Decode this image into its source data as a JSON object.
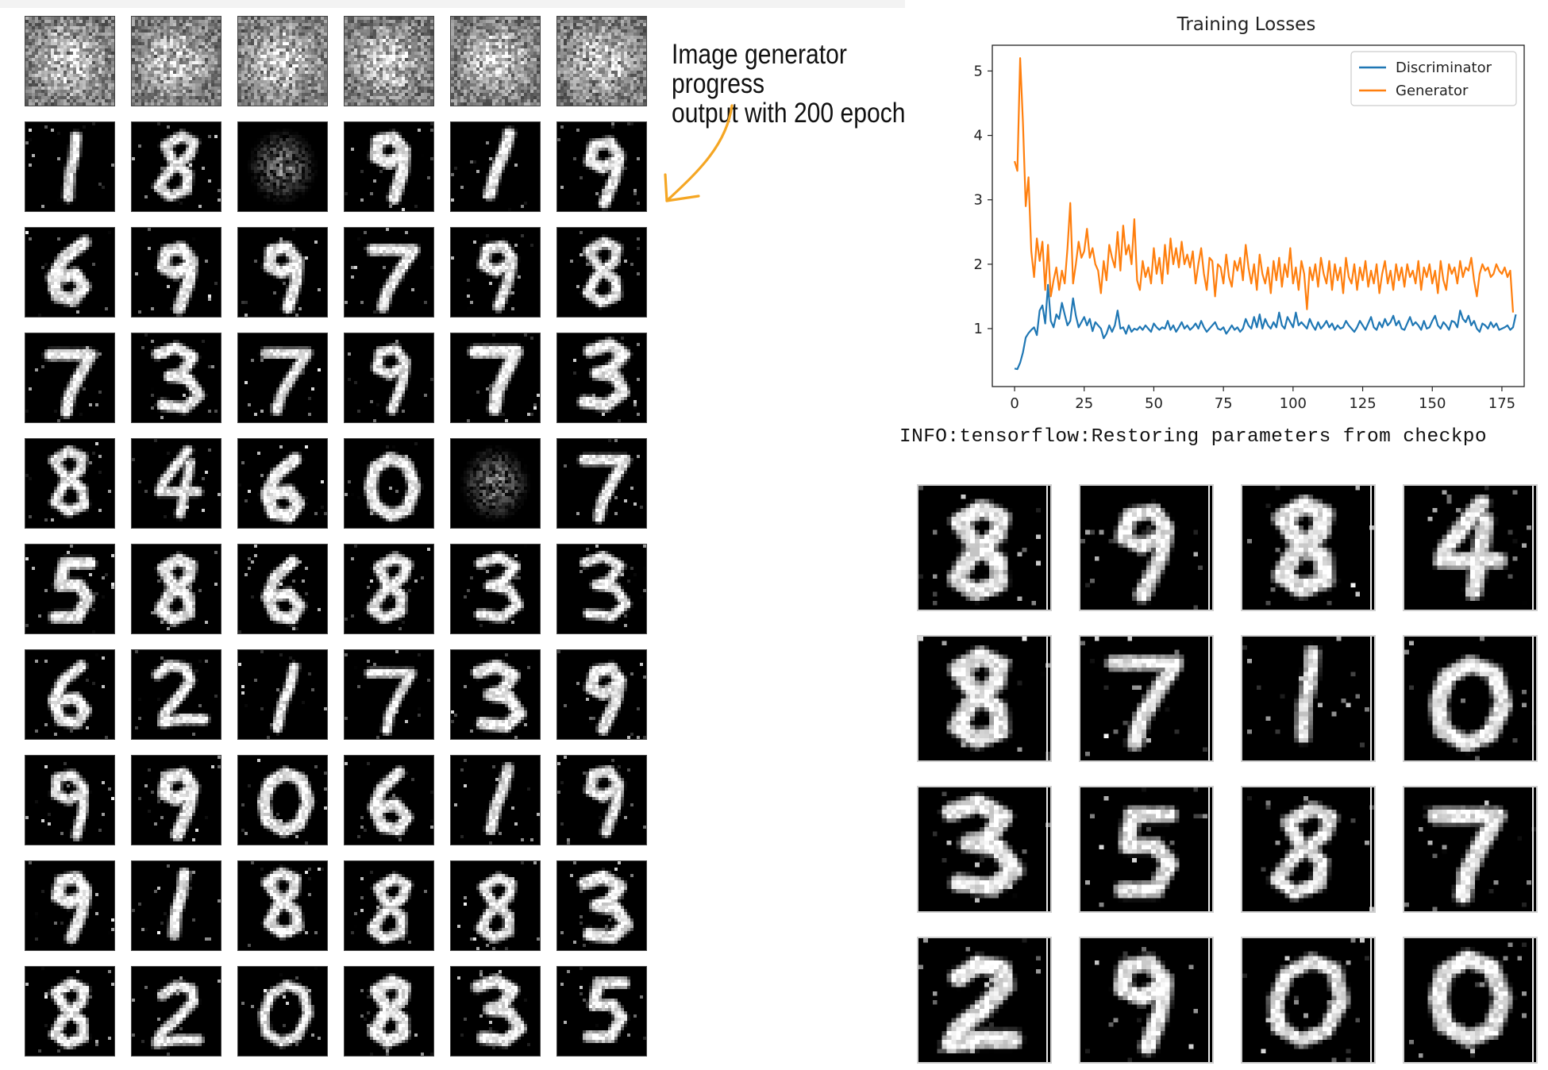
{
  "annotation": {
    "line1": "Image generator progress",
    "line2": "output with 200 epoch",
    "color": "#f5a623"
  },
  "console": {
    "text": "INFO:tensorflow:Restoring parameters from checkpo"
  },
  "left_grid": {
    "rows": [
      [
        "noise",
        "noise",
        "noise",
        "noise",
        "noise",
        "noise"
      ],
      [
        "1",
        "8",
        "noise-dark",
        "9",
        "1",
        "9"
      ],
      [
        "6",
        "9",
        "9",
        "7",
        "9",
        "8"
      ],
      [
        "7",
        "3",
        "7",
        "9",
        "7",
        "3"
      ],
      [
        "8",
        "4",
        "6",
        "0",
        "noise-dark",
        "7"
      ],
      [
        "5",
        "8",
        "6",
        "8",
        "3",
        "3"
      ],
      [
        "6",
        "2",
        "1",
        "7",
        "3",
        "9"
      ],
      [
        "9",
        "9",
        "0",
        "6",
        "1",
        "9"
      ],
      [
        "9",
        "1",
        "8",
        "8",
        "8",
        "3"
      ],
      [
        "8",
        "2",
        "0",
        "8",
        "3",
        "5"
      ]
    ]
  },
  "right_grid": {
    "rows": [
      [
        "8",
        "9",
        "8",
        "4"
      ],
      [
        "8",
        "7",
        "1",
        "0"
      ],
      [
        "3",
        "5",
        "8",
        "7"
      ],
      [
        "2",
        "9",
        "0",
        "0"
      ]
    ]
  },
  "chart_data": {
    "type": "line",
    "title": "Training Losses",
    "xlabel": "",
    "ylabel": "",
    "xlim": [
      -8,
      183
    ],
    "ylim": [
      0.1,
      5.4
    ],
    "xticks": [
      0,
      25,
      50,
      75,
      100,
      125,
      150,
      175
    ],
    "yticks": [
      1,
      2,
      3,
      4,
      5
    ],
    "legend_position": "top-right",
    "series": [
      {
        "name": "Discriminator",
        "color": "#1f77b4",
        "values": [
          0.38,
          0.37,
          0.47,
          0.63,
          0.86,
          0.93,
          0.98,
          1.02,
          0.9,
          1.28,
          1.36,
          1.08,
          1.68,
          1.12,
          1.02,
          1.22,
          1.15,
          1.4,
          1.22,
          1.05,
          1.12,
          1.47,
          1.2,
          1.02,
          1.1,
          1.18,
          1.05,
          1.15,
          0.96,
          1.1,
          1.05,
          1.0,
          0.85,
          0.92,
          1.05,
          0.95,
          1.05,
          1.28,
          1.0,
          1.02,
          0.92,
          1.05,
          0.95,
          1.0,
          0.98,
          1.03,
          0.98,
          1.05,
          1.0,
          0.95,
          1.08,
          1.02,
          0.98,
          1.02,
          1.0,
          1.12,
          0.98,
          1.05,
          0.95,
          1.02,
          1.1,
          1.0,
          1.05,
          0.98,
          1.02,
          1.08,
          1.0,
          1.12,
          1.02,
          0.95,
          1.0,
          1.05,
          1.1,
          1.0,
          0.98,
          1.02,
          0.92,
          0.98,
          1.05,
          0.98,
          1.02,
          0.95,
          1.0,
          1.15,
          1.05,
          1.0,
          1.18,
          1.02,
          1.22,
          1.0,
          1.15,
          1.05,
          1.0,
          1.1,
          1.02,
          1.25,
          1.05,
          1.0,
          1.18,
          1.1,
          1.02,
          1.25,
          1.05,
          1.1,
          1.05,
          1.0,
          1.15,
          1.05,
          0.98,
          1.1,
          1.0,
          1.05,
          1.12,
          1.02,
          1.08,
          0.98,
          1.05,
          1.0,
          1.02,
          1.12,
          1.05,
          1.0,
          0.95,
          1.02,
          1.12,
          1.05,
          0.98,
          1.08,
          1.18,
          1.02,
          0.98,
          1.1,
          1.02,
          1.15,
          1.05,
          1.1,
          1.2,
          1.05,
          1.12,
          1.0,
          0.98,
          1.08,
          1.18,
          1.05,
          1.1,
          1.05,
          0.98,
          1.12,
          1.0,
          1.02,
          1.12,
          1.2,
          1.05,
          1.0,
          1.1,
          1.05,
          0.98,
          1.12,
          1.1,
          1.02,
          1.28,
          1.15,
          1.1,
          1.2,
          1.05,
          1.12,
          1.0,
          0.95,
          1.08,
          1.05,
          1.0,
          1.1,
          1.02,
          1.08,
          0.98,
          1.0,
          1.02,
          1.05,
          0.98,
          1.02,
          1.22
        ]
      },
      {
        "name": "Generator",
        "color": "#ff7f0e",
        "values": [
          3.6,
          3.45,
          5.2,
          4.2,
          2.9,
          3.35,
          2.2,
          1.8,
          2.4,
          2.05,
          2.35,
          1.6,
          2.3,
          1.5,
          1.75,
          1.95,
          1.6,
          1.9,
          1.7,
          2.25,
          2.95,
          1.7,
          2.0,
          2.35,
          2.1,
          2.2,
          2.55,
          2.1,
          2.25,
          2.0,
          1.9,
          1.55,
          2.05,
          1.75,
          2.3,
          2.1,
          1.95,
          2.5,
          1.9,
          2.6,
          2.15,
          2.3,
          2.0,
          2.7,
          1.75,
          1.6,
          2.05,
          1.8,
          1.95,
          1.7,
          2.25,
          1.85,
          2.1,
          1.7,
          2.3,
          1.85,
          2.4,
          2.0,
          2.25,
          1.95,
          2.35,
          2.0,
          2.15,
          1.95,
          2.2,
          1.7,
          2.0,
          2.25,
          1.85,
          1.6,
          2.1,
          2.05,
          1.5,
          2.0,
          1.95,
          1.7,
          2.15,
          1.8,
          1.65,
          2.05,
          1.9,
          2.1,
          1.75,
          2.3,
          1.95,
          1.7,
          2.0,
          1.6,
          2.15,
          1.85,
          1.7,
          1.95,
          1.55,
          2.05,
          1.75,
          2.1,
          1.65,
          2.0,
          1.8,
          2.25,
          1.7,
          1.95,
          1.6,
          2.05,
          1.85,
          1.3,
          1.95,
          1.75,
          2.0,
          1.65,
          2.1,
          1.85,
          1.7,
          2.05,
          1.6,
          2.0,
          1.75,
          1.95,
          1.55,
          2.1,
          1.8,
          1.7,
          2.0,
          1.6,
          1.95,
          1.75,
          2.05,
          1.65,
          1.9,
          1.7,
          2.0,
          1.55,
          1.85,
          2.05,
          1.7,
          1.9,
          1.6,
          2.0,
          1.75,
          1.95,
          1.65,
          2.0,
          1.8,
          1.9,
          1.7,
          2.05,
          1.6,
          1.95,
          1.8,
          2.0,
          1.7,
          1.9,
          1.55,
          2.05,
          1.75,
          1.6,
          2.0,
          1.85,
          1.95,
          1.7,
          2.05,
          1.8,
          1.95,
          1.9,
          2.1,
          1.75,
          1.5,
          1.85,
          2.0,
          1.9,
          1.95,
          1.8,
          1.85,
          2.0,
          1.9,
          1.85,
          1.95,
          1.8,
          1.9,
          1.25
        ]
      }
    ]
  }
}
